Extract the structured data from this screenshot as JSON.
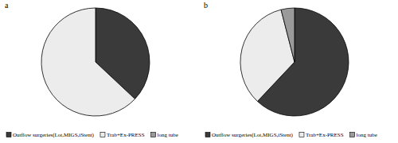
{
  "chart_data": [
    {
      "type": "pie",
      "title": "a",
      "categories": [
        "Outflow surgeries(Lot,MIGS,iStent)",
        "Trab+Ex-PRESS",
        "long tube"
      ],
      "values": [
        37,
        63,
        0
      ],
      "colors": [
        "#3a3a3a",
        "#ececec",
        "#9a9a9a"
      ],
      "legend": "bottom"
    },
    {
      "type": "pie",
      "title": "b",
      "categories": [
        "Outflow surgeries(Lot,MIGS,iStent)",
        "Trab+Ex-PRESS",
        "long tube"
      ],
      "values": [
        62,
        34,
        4
      ],
      "colors": [
        "#3a3a3a",
        "#ececec",
        "#9a9a9a"
      ],
      "legend": "bottom"
    }
  ]
}
